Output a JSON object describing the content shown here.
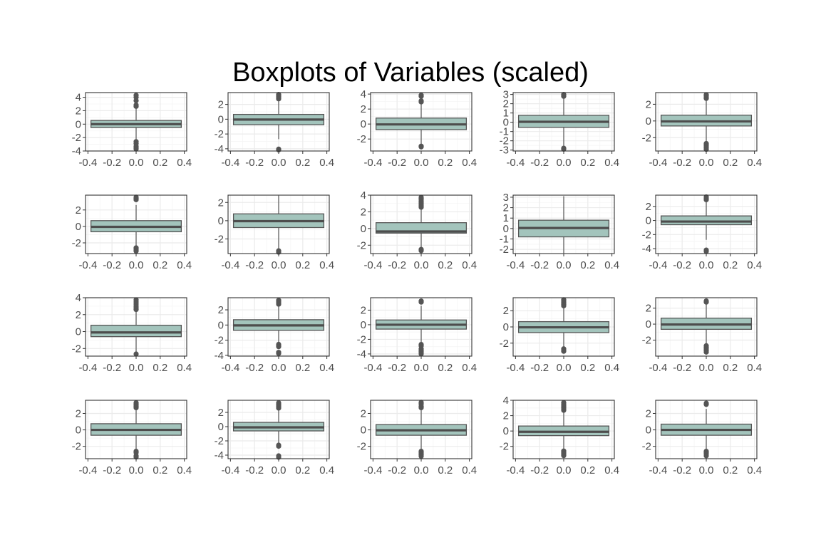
{
  "chart_data": {
    "type": "boxplot-grid",
    "title": "Boxplots of Variables (scaled)",
    "rows": 4,
    "cols": 5,
    "x_ticks": [
      "-0.4",
      "-0.2",
      "0.0",
      "0.2",
      "0.4"
    ],
    "x_tick_values": [
      -0.4,
      -0.2,
      0.0,
      0.2,
      0.4
    ],
    "xlim": [
      -0.42,
      0.42
    ],
    "box_x_range": [
      -0.375,
      0.375
    ],
    "grid": true,
    "colors": {
      "box_fill": "#a3c4bc",
      "box_stroke": "#555555",
      "median": "#4d4d4d",
      "outlier": "#555555",
      "panel_border": "#333333",
      "grid_major": "#ebebeb",
      "grid_minor": "#f5f5f5"
    },
    "panels": [
      {
        "ylim": [
          -4.0,
          4.7
        ],
        "yticks": [
          -4,
          -2,
          0,
          2,
          4
        ],
        "q1": -0.5,
        "median": 0.0,
        "q3": 0.55,
        "wmin": -2.5,
        "wmax": 2.5,
        "outliers": [
          2.65,
          2.85,
          3.5,
          4.0,
          4.3,
          -2.6,
          -2.9,
          -3.3,
          -3.55,
          -3.7
        ]
      },
      {
        "ylim": [
          -4.3,
          3.6
        ],
        "yticks": [
          -4,
          -2,
          0,
          2
        ],
        "q1": -0.75,
        "median": -0.05,
        "q3": 0.65,
        "wmin": -2.7,
        "wmax": 2.7,
        "outliers": [
          2.75,
          2.9,
          3.05,
          3.2,
          3.35,
          -4.05,
          -4.15
        ]
      },
      {
        "ylim": [
          -3.6,
          4.2
        ],
        "yticks": [
          -2,
          0,
          2,
          4
        ],
        "q1": -0.75,
        "median": -0.05,
        "q3": 0.8,
        "wmin": -2.85,
        "wmax": 2.9,
        "outliers": [
          2.95,
          3.1,
          3.7,
          3.85,
          -2.95,
          -3.05
        ]
      },
      {
        "ylim": [
          -3.1,
          3.2
        ],
        "yticks": [
          -3,
          -2,
          -1,
          0,
          1,
          2,
          3
        ],
        "q1": -0.55,
        "median": 0.05,
        "q3": 0.75,
        "wmin": -2.75,
        "wmax": 2.75,
        "outliers": [
          2.8,
          2.9,
          3.0,
          -2.8,
          -2.9
        ]
      },
      {
        "ylim": [
          -3.6,
          3.4
        ],
        "yticks": [
          -2,
          0,
          2
        ],
        "q1": -0.6,
        "median": -0.05,
        "q3": 0.7,
        "wmin": -2.6,
        "wmax": 2.6,
        "outliers": [
          2.7,
          2.85,
          3.0,
          3.15,
          -2.7,
          -2.85,
          -3.0,
          -3.2,
          -3.4
        ]
      },
      {
        "ylim": [
          -3.3,
          3.8
        ],
        "yticks": [
          -2,
          0,
          2
        ],
        "q1": -0.65,
        "median": -0.05,
        "q3": 0.7,
        "wmin": -2.55,
        "wmax": 2.6,
        "outliers": [
          3.25,
          3.4,
          3.55,
          -2.6,
          -2.75,
          -2.9,
          -3.0
        ]
      },
      {
        "ylim": [
          -3.6,
          2.8
        ],
        "yticks": [
          -2,
          0,
          2
        ],
        "q1": -0.75,
        "median": -0.05,
        "q3": 0.75,
        "wmin": -3.2,
        "wmax": 2.75,
        "outliers": [
          -3.3,
          -3.45
        ]
      },
      {
        "ylim": [
          -3.0,
          4.0
        ],
        "yticks": [
          -2,
          0,
          2,
          4
        ],
        "q1": -0.55,
        "median": -0.35,
        "q3": 0.7,
        "wmin": -2.45,
        "wmax": 2.4,
        "outliers": [
          2.55,
          2.7,
          2.85,
          3.05,
          3.25,
          3.45,
          3.6,
          3.75,
          -2.5,
          -2.65
        ]
      },
      {
        "ylim": [
          -2.4,
          3.2
        ],
        "yticks": [
          -2,
          -1,
          0,
          1,
          2,
          3
        ],
        "q1": -0.8,
        "median": 0.05,
        "q3": 0.8,
        "wmin": -2.35,
        "wmax": 3.1,
        "outliers": []
      },
      {
        "ylim": [
          -4.7,
          3.6
        ],
        "yticks": [
          -4,
          -2,
          0,
          2
        ],
        "q1": -0.6,
        "median": -0.15,
        "q3": 0.65,
        "wmin": -2.75,
        "wmax": 2.8,
        "outliers": [
          2.95,
          3.15,
          3.35,
          -4.2,
          -4.4
        ]
      },
      {
        "ylim": [
          -2.9,
          4.0
        ],
        "yticks": [
          -2,
          0,
          2,
          4
        ],
        "q1": -0.6,
        "median": -0.1,
        "q3": 0.75,
        "wmin": -2.6,
        "wmax": 2.5,
        "outliers": [
          2.6,
          2.8,
          3.0,
          3.25,
          3.5,
          3.75,
          -2.65
        ]
      },
      {
        "ylim": [
          -4.1,
          3.6
        ],
        "yticks": [
          -4,
          -2,
          0,
          2
        ],
        "q1": -0.7,
        "median": -0.05,
        "q3": 0.7,
        "wmin": -2.5,
        "wmax": 2.65,
        "outliers": [
          2.75,
          2.9,
          3.05,
          3.25,
          -2.55,
          -2.7,
          -2.85,
          -3.6,
          -3.75
        ]
      },
      {
        "ylim": [
          -4.3,
          3.7
        ],
        "yticks": [
          -4,
          -2,
          0,
          2
        ],
        "q1": -0.6,
        "median": 0.0,
        "q3": 0.65,
        "wmin": -2.5,
        "wmax": 2.6,
        "outliers": [
          3.1,
          3.25,
          -2.7,
          -2.9,
          -3.3,
          -3.5,
          -3.65,
          -3.8,
          -4.0
        ]
      },
      {
        "ylim": [
          -3.6,
          3.6
        ],
        "yticks": [
          -2,
          0,
          2
        ],
        "q1": -0.7,
        "median": -0.05,
        "q3": 0.65,
        "wmin": -2.55,
        "wmax": 2.5,
        "outliers": [
          2.6,
          2.75,
          2.9,
          3.05,
          3.2,
          3.35,
          -2.7,
          -2.85,
          -3.0
        ]
      },
      {
        "ylim": [
          -4.0,
          3.3
        ],
        "yticks": [
          -2,
          0,
          2
        ],
        "q1": -0.65,
        "median": -0.05,
        "q3": 0.75,
        "wmin": -2.6,
        "wmax": 2.6,
        "outliers": [
          2.75,
          2.9,
          -2.7,
          -2.9,
          -3.1,
          -3.3,
          -3.5
        ]
      },
      {
        "ylim": [
          -3.5,
          3.6
        ],
        "yticks": [
          -2,
          0,
          2
        ],
        "q1": -0.65,
        "median": 0.0,
        "q3": 0.75,
        "wmin": -2.55,
        "wmax": 2.55,
        "outliers": [
          2.7,
          2.85,
          3.0,
          3.15,
          3.3,
          -2.6,
          -2.75,
          -3.15,
          -3.3
        ]
      },
      {
        "ylim": [
          -4.5,
          3.7
        ],
        "yticks": [
          -4,
          -2,
          0,
          2
        ],
        "q1": -0.6,
        "median": -0.1,
        "q3": 0.6,
        "wmin": -2.5,
        "wmax": 2.5,
        "outliers": [
          2.6,
          2.75,
          2.9,
          3.05,
          3.2,
          3.35,
          -2.6,
          -2.75,
          -4.1,
          -4.3
        ]
      },
      {
        "ylim": [
          -3.5,
          3.6
        ],
        "yticks": [
          -2,
          0,
          2
        ],
        "q1": -0.65,
        "median": -0.05,
        "q3": 0.65,
        "wmin": -2.55,
        "wmax": 2.55,
        "outliers": [
          2.7,
          2.85,
          3.15,
          3.35,
          -2.6,
          -2.75,
          -2.9,
          -3.05,
          -3.2
        ]
      },
      {
        "ylim": [
          -3.6,
          4.0
        ],
        "yticks": [
          -2,
          0,
          2,
          4
        ],
        "q1": -0.6,
        "median": -0.1,
        "q3": 0.65,
        "wmin": -2.5,
        "wmax": 2.55,
        "outliers": [
          2.7,
          2.85,
          3.0,
          3.15,
          3.3,
          3.5,
          3.7,
          -2.6,
          -2.75,
          -2.9,
          -3.05,
          -3.2
        ]
      },
      {
        "ylim": [
          -3.5,
          3.6
        ],
        "yticks": [
          -2,
          0,
          2
        ],
        "q1": -0.65,
        "median": 0.0,
        "q3": 0.7,
        "wmin": -2.55,
        "wmax": 2.55,
        "outliers": [
          3.1,
          3.25,
          -2.6,
          -2.75,
          -2.9,
          -3.15
        ]
      }
    ]
  }
}
